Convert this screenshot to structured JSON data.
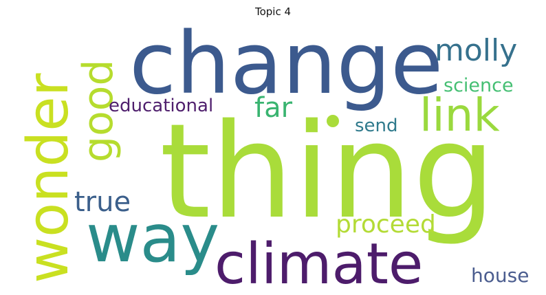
{
  "title": "Topic 4",
  "words": [
    {
      "id": "thing",
      "text": "thing",
      "color": "#a9dc3a"
    },
    {
      "id": "change",
      "text": "change",
      "color": "#3c5a8e"
    },
    {
      "id": "wonder",
      "text": "wonder",
      "color": "#c9e021"
    },
    {
      "id": "way",
      "text": "way",
      "color": "#2a8c8a"
    },
    {
      "id": "climate",
      "text": "climate",
      "color": "#4d1c6b"
    },
    {
      "id": "good",
      "text": "good",
      "color": "#b6dc2e"
    },
    {
      "id": "link",
      "text": "link",
      "color": "#9ad93e"
    },
    {
      "id": "molly",
      "text": "molly",
      "color": "#36718d"
    },
    {
      "id": "far",
      "text": "far",
      "color": "#39b470"
    },
    {
      "id": "educational",
      "text": "educational",
      "color": "#4f1f6d"
    },
    {
      "id": "science",
      "text": "science",
      "color": "#45bf73"
    },
    {
      "id": "send",
      "text": "send",
      "color": "#2f7a8c"
    },
    {
      "id": "true",
      "text": "true",
      "color": "#3b5f8b"
    },
    {
      "id": "proceed",
      "text": "proceed",
      "color": "#b3db36"
    },
    {
      "id": "house",
      "text": "house",
      "color": "#4b5d8f"
    }
  ]
}
